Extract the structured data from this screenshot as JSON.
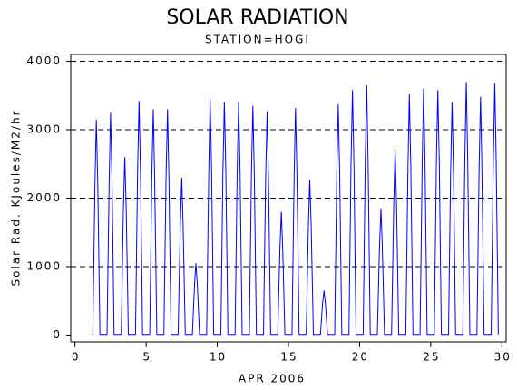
{
  "chart_data": {
    "type": "line",
    "title": "SOLAR RADIATION",
    "subtitle": "STATION=HOGI",
    "ylabel": "Solar Rad. KJoules/M2/hr",
    "xlabel": "APR 2006",
    "xlim": [
      -0.3,
      30.3
    ],
    "ylim": [
      -100,
      4100
    ],
    "xticks": [
      0,
      5,
      10,
      15,
      20,
      25,
      30
    ],
    "yticks": [
      0,
      1000,
      2000,
      3000,
      4000
    ],
    "grid": true,
    "series": [
      {
        "color": "#0000ff",
        "x": [
          1.25,
          1.4,
          1.5,
          1.6,
          1.75,
          2.25,
          2.4,
          2.5,
          2.6,
          2.75,
          3.25,
          3.4,
          3.5,
          3.6,
          3.75,
          4.25,
          4.4,
          4.5,
          4.6,
          4.75,
          5.25,
          5.4,
          5.5,
          5.6,
          5.75,
          6.25,
          6.4,
          6.5,
          6.6,
          6.75,
          7.25,
          7.4,
          7.5,
          7.6,
          7.75,
          8.25,
          8.4,
          8.5,
          8.6,
          8.75,
          9.25,
          9.4,
          9.5,
          9.6,
          9.75,
          10.25,
          10.4,
          10.5,
          10.6,
          10.75,
          11.25,
          11.4,
          11.5,
          11.6,
          11.75,
          12.25,
          12.4,
          12.5,
          12.6,
          12.75,
          13.25,
          13.4,
          13.5,
          13.6,
          13.75,
          14.25,
          14.4,
          14.5,
          14.6,
          14.75,
          15.25,
          15.4,
          15.5,
          15.6,
          15.75,
          16.25,
          16.4,
          16.5,
          16.6,
          16.75,
          17.25,
          17.4,
          17.5,
          17.6,
          17.75,
          18.25,
          18.4,
          18.5,
          18.6,
          18.75,
          19.25,
          19.4,
          19.5,
          19.6,
          19.75,
          20.25,
          20.4,
          20.5,
          20.6,
          20.75,
          21.25,
          21.4,
          21.5,
          21.6,
          21.75,
          22.25,
          22.4,
          22.5,
          22.6,
          22.75,
          23.25,
          23.4,
          23.5,
          23.6,
          23.75,
          24.25,
          24.4,
          24.5,
          24.6,
          24.75,
          25.25,
          25.4,
          25.5,
          25.6,
          25.75,
          26.25,
          26.4,
          26.5,
          26.6,
          26.75,
          27.25,
          27.4,
          27.5,
          27.6,
          27.75,
          28.25,
          28.4,
          28.5,
          28.6,
          28.75,
          29.25,
          29.4,
          29.5,
          29.6,
          29.75
        ],
        "values": [
          10,
          2205,
          3150,
          2205,
          10,
          10,
          2275,
          3250,
          2275,
          10,
          10,
          1820,
          2600,
          1820,
          10,
          10,
          2394,
          3420,
          2394,
          10,
          10,
          2310,
          3300,
          2310,
          10,
          10,
          2310,
          3300,
          2310,
          10,
          10,
          1610,
          2300,
          1610,
          10,
          10,
          735,
          1050,
          735,
          10,
          10,
          2415,
          3450,
          2415,
          10,
          10,
          2380,
          3400,
          2380,
          10,
          10,
          2380,
          3400,
          2380,
          10,
          10,
          2345,
          3350,
          2345,
          10,
          10,
          2289,
          3270,
          2289,
          10,
          10,
          1260,
          1800,
          1260,
          10,
          10,
          2324,
          3320,
          2324,
          10,
          10,
          1589,
          2270,
          1589,
          10,
          10,
          455,
          650,
          455,
          10,
          10,
          2359,
          3370,
          2359,
          10,
          10,
          2506,
          3580,
          2506,
          10,
          10,
          2555,
          3650,
          2555,
          10,
          10,
          1295,
          1850,
          1295,
          10,
          10,
          1904,
          2720,
          1904,
          10,
          10,
          2464,
          3520,
          2464,
          10,
          10,
          2520,
          3600,
          2520,
          10,
          10,
          2506,
          3580,
          2506,
          10,
          10,
          2380,
          3400,
          2380,
          10,
          10,
          2590,
          3700,
          2590,
          10,
          10,
          2436,
          3480,
          2436,
          10,
          10,
          2576,
          3680,
          2576,
          10
        ]
      }
    ]
  }
}
